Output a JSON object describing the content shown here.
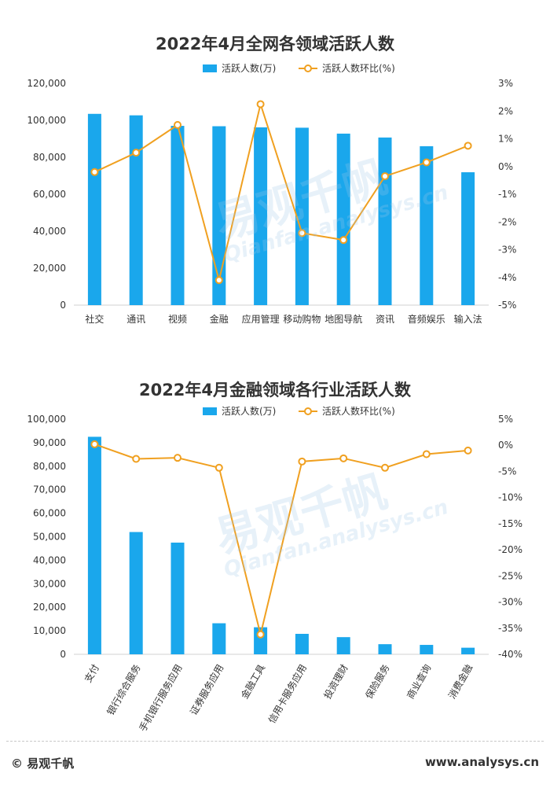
{
  "watermark": {
    "cn": "易观千帆",
    "en": "Qianfan.analysys.cn"
  },
  "footer": {
    "copyright": "© 易观千帆",
    "site": "www.analysys.cn"
  },
  "colors": {
    "bar": "#1AA7EC",
    "line": "#F0A020",
    "axis": "#d0d0d0",
    "text": "#333333"
  },
  "chart_data": [
    {
      "type": "bar",
      "title": "2022年4月全网各领域活跃人数",
      "legend": {
        "bar": "活跃人数(万)",
        "line": "活跃人数环比(%)"
      },
      "categories": [
        "社交",
        "通讯",
        "视频",
        "金融",
        "应用管理",
        "移动购物",
        "地图导航",
        "资讯",
        "音频娱乐",
        "输入法"
      ],
      "series": [
        {
          "name": "活跃人数(万)",
          "axis": "left",
          "values": [
            103500,
            102700,
            97000,
            96800,
            96200,
            96000,
            92800,
            90700,
            86000,
            71900
          ]
        },
        {
          "name": "活跃人数环比(%)",
          "axis": "right",
          "kind": "line",
          "values": [
            -0.2,
            0.5,
            1.5,
            -4.1,
            2.25,
            -2.4,
            -2.65,
            -0.35,
            0.15,
            0.75
          ]
        }
      ],
      "ylim": [
        0,
        120000
      ],
      "yticks": [
        "0",
        "20,000",
        "40,000",
        "60,000",
        "80,000",
        "100,000",
        "120,000"
      ],
      "y2lim": [
        -5,
        3
      ],
      "y2ticks": [
        "-5%",
        "-4%",
        "-3%",
        "-2%",
        "-1%",
        "0%",
        "1%",
        "2%",
        "3%"
      ]
    },
    {
      "type": "bar",
      "title": "2022年4月金融领域各行业活跃人数",
      "legend": {
        "bar": "活跃人数(万)",
        "line": "活跃人数环比(%)"
      },
      "categories": [
        "支付",
        "银行综合服务",
        "手机银行服务应用",
        "证券服务应用",
        "金融工具",
        "信用卡服务应用",
        "投资理财",
        "保险服务",
        "商业查询",
        "消费金融"
      ],
      "series": [
        {
          "name": "活跃人数(万)",
          "axis": "left",
          "values": [
            92500,
            52000,
            47500,
            13200,
            11500,
            8700,
            7300,
            4300,
            4000,
            2800
          ]
        },
        {
          "name": "活跃人数环比(%)",
          "axis": "right",
          "kind": "line",
          "values": [
            0.2,
            -2.6,
            -2.4,
            -4.3,
            -36.2,
            -3.1,
            -2.5,
            -4.3,
            -1.7,
            -1.0
          ]
        }
      ],
      "ylim": [
        0,
        100000
      ],
      "yticks": [
        "0",
        "10,000",
        "20,000",
        "30,000",
        "40,000",
        "50,000",
        "60,000",
        "70,000",
        "80,000",
        "90,000",
        "100,000"
      ],
      "y2lim": [
        -40,
        5
      ],
      "y2ticks": [
        "-40%",
        "-35%",
        "-30%",
        "-25%",
        "-20%",
        "-15%",
        "-10%",
        "-5%",
        "0%",
        "5%"
      ]
    }
  ]
}
